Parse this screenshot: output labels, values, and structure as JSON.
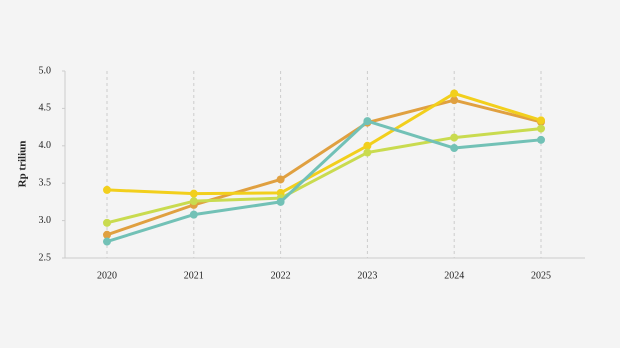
{
  "chart_data": {
    "type": "line",
    "y_label": "Rp triliun",
    "categories": [
      "2020",
      "2021",
      "2022",
      "2023",
      "2024",
      "2025"
    ],
    "series": [
      {
        "color": "#e0a040",
        "values": [
          2.81,
          3.21,
          3.55,
          4.31,
          4.61,
          4.32
        ]
      },
      {
        "color": "#f2cf1c",
        "values": [
          3.41,
          3.36,
          3.37,
          4.0,
          4.7,
          4.34
        ]
      },
      {
        "color": "#c9db4f",
        "values": [
          2.97,
          3.26,
          3.3,
          3.91,
          4.11,
          4.23
        ]
      },
      {
        "color": "#72c1b6",
        "values": [
          2.72,
          3.08,
          3.25,
          4.33,
          3.97,
          4.08
        ]
      }
    ],
    "ylim": [
      2.5,
      5.0
    ],
    "yticks": [
      {
        "value": 2.5,
        "label": "2.5"
      },
      {
        "value": 3.0,
        "label": "3.0"
      },
      {
        "value": 3.5,
        "label": "3.5"
      },
      {
        "value": 4.0,
        "label": "4.0"
      },
      {
        "value": 4.5,
        "label": "4.5"
      },
      {
        "value": 5.0,
        "label": "5.0"
      }
    ],
    "grid": true
  }
}
